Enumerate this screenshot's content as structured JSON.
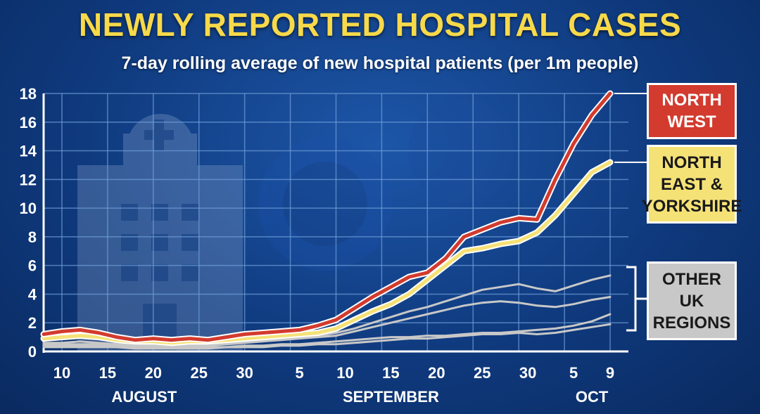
{
  "chart_data": {
    "type": "line",
    "title": "NEWLY REPORTED HOSPITAL CASES",
    "subtitle": "7-day rolling average of new hospital patients (per 1m people)",
    "ylim": [
      0,
      18
    ],
    "yticks": [
      0,
      2,
      4,
      6,
      8,
      10,
      12,
      14,
      16,
      18
    ],
    "xlim": [
      8,
      72
    ],
    "x_tick_labels": [
      {
        "x": 10,
        "label": "10"
      },
      {
        "x": 15,
        "label": "15"
      },
      {
        "x": 20,
        "label": "20"
      },
      {
        "x": 25,
        "label": "25"
      },
      {
        "x": 30,
        "label": "30"
      },
      {
        "x": 36,
        "label": "5"
      },
      {
        "x": 41,
        "label": "10"
      },
      {
        "x": 46,
        "label": "15"
      },
      {
        "x": 51,
        "label": "20"
      },
      {
        "x": 56,
        "label": "25"
      },
      {
        "x": 61,
        "label": "30"
      },
      {
        "x": 66,
        "label": "5"
      },
      {
        "x": 70,
        "label": "9"
      }
    ],
    "month_labels": [
      {
        "x": 19,
        "label": "AUGUST"
      },
      {
        "x": 46,
        "label": "SEPTEMBER"
      },
      {
        "x": 68,
        "label": "OCT"
      }
    ],
    "grid": true,
    "series": [
      {
        "name": "NORTH WEST",
        "color": "#d23b2e",
        "x": [
          8,
          10,
          12,
          14,
          16,
          18,
          20,
          22,
          24,
          26,
          28,
          30,
          32,
          34,
          36,
          38,
          40,
          42,
          44,
          46,
          48,
          50,
          52,
          54,
          56,
          58,
          60,
          62,
          64,
          66,
          68,
          70
        ],
        "values": [
          1.2,
          1.4,
          1.5,
          1.3,
          1.0,
          0.8,
          0.9,
          0.8,
          0.9,
          0.8,
          1.0,
          1.2,
          1.3,
          1.4,
          1.5,
          1.8,
          2.2,
          3.0,
          3.8,
          4.5,
          5.2,
          5.5,
          6.5,
          8.0,
          8.5,
          9.0,
          9.3,
          9.2,
          12.0,
          14.5,
          16.5,
          18.0
        ]
      },
      {
        "name": "NORTH EAST & YORKSHIRE",
        "color": "#f5e277",
        "x": [
          8,
          10,
          12,
          14,
          16,
          18,
          20,
          22,
          24,
          26,
          28,
          30,
          32,
          34,
          36,
          38,
          40,
          42,
          44,
          46,
          48,
          50,
          52,
          54,
          56,
          58,
          60,
          62,
          64,
          66,
          68,
          70
        ],
        "values": [
          0.9,
          1.0,
          1.1,
          1.0,
          0.8,
          0.7,
          0.7,
          0.6,
          0.7,
          0.7,
          0.8,
          0.9,
          1.0,
          1.1,
          1.2,
          1.3,
          1.6,
          2.2,
          2.8,
          3.3,
          4.0,
          5.0,
          6.0,
          7.0,
          7.2,
          7.5,
          7.7,
          8.3,
          9.5,
          11.0,
          12.5,
          13.2
        ]
      },
      {
        "name": "OTHER UK REGIONS",
        "color": "#c8c8c8",
        "x": [
          8,
          10,
          12,
          14,
          16,
          18,
          20,
          22,
          24,
          26,
          28,
          30,
          32,
          34,
          36,
          38,
          40,
          42,
          44,
          46,
          48,
          50,
          52,
          54,
          56,
          58,
          60,
          62,
          64,
          66,
          68,
          70
        ],
        "values": [
          0.6,
          0.6,
          0.7,
          0.6,
          0.5,
          0.5,
          0.5,
          0.4,
          0.5,
          0.5,
          0.6,
          0.7,
          0.8,
          0.9,
          1.0,
          1.1,
          1.3,
          1.6,
          2.0,
          2.4,
          2.8,
          3.1,
          3.5,
          3.9,
          4.3,
          4.5,
          4.7,
          4.4,
          4.2,
          4.6,
          5.0,
          5.3
        ]
      },
      {
        "name": "OTHER UK REGIONS",
        "color": "#c8c8c8",
        "x": [
          8,
          10,
          12,
          14,
          16,
          18,
          20,
          22,
          24,
          26,
          28,
          30,
          32,
          34,
          36,
          38,
          40,
          42,
          44,
          46,
          48,
          50,
          52,
          54,
          56,
          58,
          60,
          62,
          64,
          66,
          68,
          70
        ],
        "values": [
          0.5,
          0.5,
          0.5,
          0.5,
          0.4,
          0.4,
          0.4,
          0.4,
          0.4,
          0.4,
          0.5,
          0.6,
          0.7,
          0.8,
          0.9,
          1.0,
          1.1,
          1.4,
          1.7,
          2.0,
          2.3,
          2.6,
          2.9,
          3.2,
          3.4,
          3.5,
          3.4,
          3.2,
          3.1,
          3.3,
          3.6,
          3.8
        ]
      },
      {
        "name": "OTHER UK REGIONS",
        "color": "#c8c8c8",
        "x": [
          8,
          10,
          12,
          14,
          16,
          18,
          20,
          22,
          24,
          26,
          28,
          30,
          32,
          34,
          36,
          38,
          40,
          42,
          44,
          46,
          48,
          50,
          52,
          54,
          56,
          58,
          60,
          62,
          64,
          66,
          68,
          70
        ],
        "values": [
          0.4,
          0.4,
          0.4,
          0.4,
          0.3,
          0.3,
          0.3,
          0.3,
          0.3,
          0.3,
          0.3,
          0.4,
          0.4,
          0.5,
          0.5,
          0.6,
          0.7,
          0.8,
          0.9,
          1.0,
          1.0,
          1.1,
          1.1,
          1.2,
          1.3,
          1.3,
          1.4,
          1.5,
          1.6,
          1.8,
          2.1,
          2.6
        ]
      },
      {
        "name": "OTHER UK REGIONS",
        "color": "#c8c8c8",
        "x": [
          8,
          10,
          12,
          14,
          16,
          18,
          20,
          22,
          24,
          26,
          28,
          30,
          32,
          34,
          36,
          38,
          40,
          42,
          44,
          46,
          48,
          50,
          52,
          54,
          56,
          58,
          60,
          62,
          64,
          66,
          68,
          70
        ],
        "values": [
          0.3,
          0.3,
          0.3,
          0.3,
          0.3,
          0.2,
          0.2,
          0.2,
          0.2,
          0.2,
          0.3,
          0.3,
          0.3,
          0.4,
          0.4,
          0.5,
          0.5,
          0.6,
          0.7,
          0.8,
          0.9,
          0.9,
          1.0,
          1.1,
          1.2,
          1.2,
          1.3,
          1.2,
          1.3,
          1.5,
          1.7,
          1.9
        ]
      }
    ]
  },
  "labels": {
    "north_west": "NORTH WEST",
    "north_east": "NORTH EAST & YORKSHIRE",
    "other": "OTHER UK REGIONS"
  }
}
